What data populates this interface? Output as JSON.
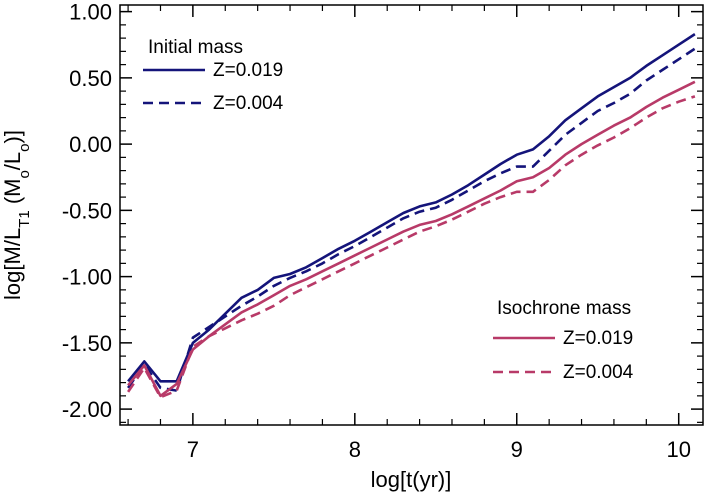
{
  "chart_data": {
    "type": "line",
    "title": "",
    "xlabel": "log[t(yr)]",
    "ylabel": {
      "prefix": "log[M/L",
      "sub1": "T1",
      "mid": " (M",
      "sub2": "o",
      "mid2": "/L",
      "sub3": "o",
      "suffix": ")]"
    },
    "xlim": [
      6.55,
      10.15
    ],
    "ylim": [
      -2.12,
      1.05
    ],
    "x_ticks": [
      7,
      8,
      9,
      10
    ],
    "x_tick_labels": [
      "7",
      "8",
      "9",
      "10"
    ],
    "y_ticks": [
      1.0,
      0.5,
      0.0,
      -0.5,
      -1.0,
      -1.5,
      -2.0
    ],
    "y_tick_labels": [
      "1.00",
      "0.50",
      "0.00",
      "-0.50",
      "-1.00",
      "-1.50",
      "-2.00"
    ],
    "legends": [
      {
        "title": "Initial mass",
        "placement": "top-left",
        "entries": [
          {
            "label": "Z=0.019",
            "color": "#14147a",
            "dash": "solid"
          },
          {
            "label": "Z=0.004",
            "color": "#14147a",
            "dash": "dashed"
          }
        ]
      },
      {
        "title": "Isochrone mass",
        "placement": "bottom-right",
        "entries": [
          {
            "label": "Z=0.019",
            "color": "#b83a68",
            "dash": "solid"
          },
          {
            "label": "Z=0.004",
            "color": "#b83a68",
            "dash": "dashed"
          }
        ]
      }
    ],
    "x": [
      6.6,
      6.7,
      6.8,
      6.9,
      7.0,
      7.1,
      7.2,
      7.3,
      7.4,
      7.5,
      7.6,
      7.7,
      7.8,
      7.9,
      8.0,
      8.1,
      8.2,
      8.3,
      8.4,
      8.5,
      8.6,
      8.7,
      8.8,
      8.9,
      9.0,
      9.1,
      9.2,
      9.3,
      9.4,
      9.5,
      9.6,
      9.7,
      9.8,
      9.9,
      10.0,
      10.1
    ],
    "series": [
      {
        "legend": 0,
        "color": "#14147a",
        "dash": "solid",
        "values": [
          -1.79,
          -1.64,
          -1.79,
          -1.79,
          -1.5,
          -1.4,
          -1.28,
          -1.16,
          -1.1,
          -1.01,
          -0.98,
          -0.93,
          -0.86,
          -0.79,
          -0.73,
          -0.66,
          -0.59,
          -0.52,
          -0.47,
          -0.44,
          -0.38,
          -0.31,
          -0.23,
          -0.15,
          -0.08,
          -0.04,
          0.06,
          0.18,
          0.27,
          0.36,
          0.43,
          0.5,
          0.59,
          0.67,
          0.75,
          0.83
        ]
      },
      {
        "legend": 0,
        "color": "#14147a",
        "dash": "dashed",
        "values": [
          -1.84,
          -1.66,
          -1.84,
          -1.86,
          -1.46,
          -1.38,
          -1.3,
          -1.22,
          -1.15,
          -1.07,
          -1.01,
          -0.96,
          -0.9,
          -0.83,
          -0.77,
          -0.7,
          -0.63,
          -0.56,
          -0.51,
          -0.48,
          -0.42,
          -0.35,
          -0.28,
          -0.22,
          -0.17,
          -0.17,
          -0.05,
          0.07,
          0.16,
          0.25,
          0.31,
          0.38,
          0.48,
          0.56,
          0.64,
          0.72
        ]
      },
      {
        "legend": 1,
        "color": "#b83a68",
        "dash": "solid",
        "values": [
          -1.82,
          -1.67,
          -1.9,
          -1.81,
          -1.55,
          -1.45,
          -1.36,
          -1.27,
          -1.21,
          -1.14,
          -1.07,
          -1.02,
          -0.96,
          -0.9,
          -0.84,
          -0.78,
          -0.72,
          -0.66,
          -0.61,
          -0.58,
          -0.53,
          -0.47,
          -0.41,
          -0.35,
          -0.28,
          -0.25,
          -0.18,
          -0.08,
          0.0,
          0.07,
          0.14,
          0.2,
          0.28,
          0.35,
          0.41,
          0.47
        ]
      },
      {
        "legend": 1,
        "color": "#b83a68",
        "dash": "dashed",
        "values": [
          -1.87,
          -1.69,
          -1.91,
          -1.86,
          -1.53,
          -1.45,
          -1.39,
          -1.33,
          -1.28,
          -1.22,
          -1.14,
          -1.08,
          -1.02,
          -0.96,
          -0.9,
          -0.84,
          -0.78,
          -0.72,
          -0.66,
          -0.62,
          -0.57,
          -0.51,
          -0.45,
          -0.4,
          -0.36,
          -0.36,
          -0.27,
          -0.16,
          -0.08,
          -0.01,
          0.05,
          0.12,
          0.2,
          0.27,
          0.32,
          0.36
        ]
      }
    ]
  }
}
